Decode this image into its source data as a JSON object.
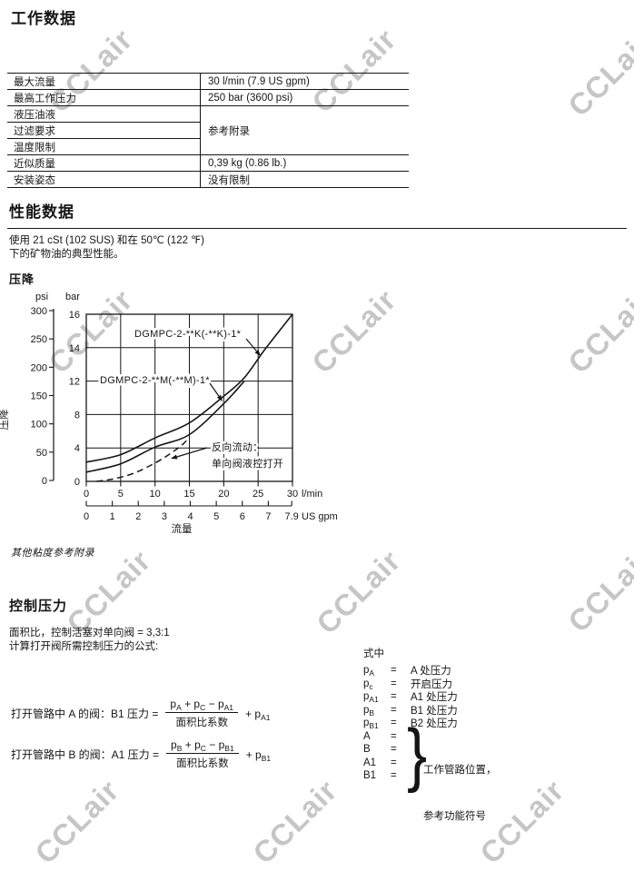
{
  "page": {
    "background": "#ffffff",
    "text_color": "#161616"
  },
  "watermark": {
    "text": "CCLair",
    "color": "rgba(152,152,152,0.55)"
  },
  "sections": {
    "working_data": {
      "title": "工作数据",
      "table": {
        "rows": [
          {
            "label": "最大流量",
            "value": "30 l/min (7.9 US gpm)"
          },
          {
            "label": "最高工作压力",
            "value": "250 bar (3600 psi)"
          },
          {
            "label": "液压油液",
            "value": "参考附录",
            "value_rowspan": 3
          },
          {
            "label": "过滤要求"
          },
          {
            "label": "温度限制"
          },
          {
            "label": "近似质量",
            "value": "0,39 kg (0.86 lb.)"
          },
          {
            "label": "安装姿态",
            "value": "没有限制"
          }
        ]
      }
    },
    "performance": {
      "title": "性能数据",
      "intro_line1": "使用 21 cSt (102 SUS) 和在 50℃ (122 ℉)",
      "intro_line2": "下的矿物油的典型性能。",
      "chart_heading": "压降",
      "note": "其他粘度参考附录"
    },
    "control_pressure": {
      "title": "控制压力",
      "line1": "面积比，控制活塞对单向阀 = 3,3:1",
      "line2": "计算打开阀所需控制压力的公式:",
      "formulas": [
        {
          "label": "打开管路中 A 的阀：B1 压力 =",
          "numerator": [
            {
              "t": "p",
              "s": "A"
            },
            {
              "t": " + "
            },
            {
              "t": "p",
              "s": "C"
            },
            {
              "t": " − "
            },
            {
              "t": "p",
              "s": "A1"
            }
          ],
          "denominator": "面积比系数",
          "tail": [
            {
              "t": "+ "
            },
            {
              "t": "p",
              "s": "A1"
            }
          ]
        },
        {
          "label": "打开管路中 B 的阀：A1 压力 =",
          "numerator": [
            {
              "t": "p",
              "s": "B"
            },
            {
              "t": " + "
            },
            {
              "t": "p",
              "s": "C"
            },
            {
              "t": " − "
            },
            {
              "t": "p",
              "s": "B1"
            }
          ],
          "denominator": "面积比系数",
          "tail": [
            {
              "t": "+ "
            },
            {
              "t": "p",
              "s": "B1"
            }
          ]
        }
      ],
      "legend": {
        "title": "式中",
        "eq": "=",
        "rows": [
          {
            "base": "p",
            "sub": "A",
            "desc": "A 处压力"
          },
          {
            "base": "p",
            "sub": "c",
            "desc": "开启压力"
          },
          {
            "base": "p",
            "sub": "A1",
            "desc": "A1 处压力"
          },
          {
            "base": "p",
            "sub": "B",
            "desc": "B1 处压力"
          },
          {
            "base": "p",
            "sub": "B1",
            "desc": "B2 处压力"
          },
          {
            "base": "A",
            "sub": "",
            "desc": ""
          },
          {
            "base": "B",
            "sub": "",
            "desc": ""
          },
          {
            "base": "A1",
            "sub": "",
            "desc": ""
          },
          {
            "base": "B1",
            "sub": "",
            "desc": ""
          }
        ],
        "brace": "}",
        "brace_lines": [
          "工作管路位置，",
          "参考功能符号"
        ]
      }
    }
  },
  "chart_data": {
    "type": "line",
    "title": "压降",
    "y_axis_title": "压降",
    "y_left_unit": "psi",
    "y_right_unit": "bar",
    "psi_ticks": [
      300,
      250,
      200,
      150,
      100,
      50,
      0
    ],
    "bar_ticks": [
      16,
      14,
      12,
      8,
      4,
      0
    ],
    "x_axis_title": "流量",
    "x_unit_primary": "l/min",
    "x_ticks_lmin": [
      0,
      5,
      10,
      15,
      20,
      25,
      30
    ],
    "x_unit_secondary": "US gpm",
    "x_ticks_gpm": [
      "0",
      "1",
      "2",
      "3",
      "4",
      "5",
      "6",
      "7",
      "7.9"
    ],
    "xlim_lmin": [
      0,
      30
    ],
    "grid": true,
    "series": [
      {
        "name": "DGMPC-2-**K(-**K)-1*",
        "style": "solid",
        "points": [
          [
            0,
            2.3
          ],
          [
            5,
            3.2
          ],
          [
            10,
            5.2
          ],
          [
            15,
            7.0
          ],
          [
            20,
            10.2
          ],
          [
            23,
            12.2
          ],
          [
            26,
            13.9
          ],
          [
            30,
            16.0
          ]
        ],
        "label_pos": [
          148,
          371
        ],
        "arrow": [
          271,
          373,
          287,
          392
        ]
      },
      {
        "name": "DGMPC-2-**M(-**M)-1*",
        "style": "solid",
        "points": [
          [
            0,
            1.1
          ],
          [
            5,
            2.1
          ],
          [
            10,
            4.1
          ],
          [
            15,
            5.6
          ],
          [
            20,
            9.3
          ],
          [
            23,
            12.0
          ]
        ],
        "label_pos": [
          110,
          422
        ],
        "arrow": [
          231,
          422,
          245,
          442
        ]
      },
      {
        "name": "反向流动：单向阀液控打开",
        "label_lines": [
          "反向流动：",
          "单向阀液控打开"
        ],
        "style": "dashed",
        "points": [
          [
            1.5,
            0
          ],
          [
            4,
            0.3
          ],
          [
            7,
            1.0
          ],
          [
            10,
            2.2
          ],
          [
            12,
            3.2
          ],
          [
            14,
            4.4
          ],
          [
            15,
            5.3
          ]
        ],
        "label_pos": [
          233,
          496
        ],
        "arrow": [
          228,
          493,
          188,
          505
        ]
      }
    ]
  }
}
